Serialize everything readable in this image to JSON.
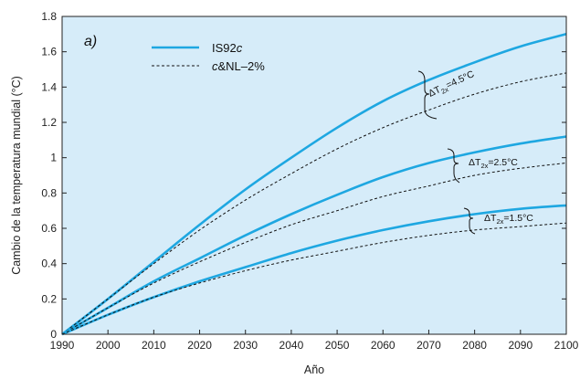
{
  "chart_data": {
    "type": "line",
    "panel_label": "a)",
    "xlabel": "Año",
    "ylabel": "Cambio de la temperatura mundial (°C)",
    "xlim": [
      1990,
      2100
    ],
    "ylim": [
      0,
      1.8
    ],
    "x_ticks": [
      "1990",
      "2000",
      "2010",
      "2020",
      "2030",
      "2040",
      "2050",
      "2060",
      "2070",
      "2080",
      "2090",
      "2100"
    ],
    "y_ticks": [
      "0",
      "0.2",
      "0.4",
      "0.6",
      "0.8",
      "1",
      "1.2",
      "1.4",
      "1.6",
      "1.8"
    ],
    "legend": [
      {
        "label_main": "IS92",
        "label_italic": "c",
        "style": "solid"
      },
      {
        "label_italic": "c",
        "label_main": "&NL–2%",
        "style": "dashed"
      }
    ],
    "annotations": [
      {
        "prefix": "ΔT",
        "sub": "2x",
        "value": "=4.5°C"
      },
      {
        "prefix": "ΔT",
        "sub": "2x",
        "value": "=2.5°C"
      },
      {
        "prefix": "ΔT",
        "sub": "2x",
        "value": "=1.5°C"
      }
    ],
    "series": [
      {
        "group": "4.5",
        "style": "solid",
        "x": [
          1990,
          2000,
          2010,
          2020,
          2030,
          2040,
          2050,
          2060,
          2070,
          2080,
          2090,
          2100
        ],
        "values": [
          0,
          0.2,
          0.41,
          0.62,
          0.82,
          1.0,
          1.17,
          1.32,
          1.44,
          1.54,
          1.63,
          1.7
        ]
      },
      {
        "group": "4.5",
        "style": "dashed",
        "x": [
          1990,
          2000,
          2010,
          2020,
          2030,
          2040,
          2050,
          2060,
          2070,
          2080,
          2090,
          2100
        ],
        "values": [
          0,
          0.2,
          0.4,
          0.59,
          0.76,
          0.91,
          1.05,
          1.17,
          1.27,
          1.36,
          1.43,
          1.48
        ]
      },
      {
        "group": "2.5",
        "style": "solid",
        "x": [
          1990,
          2000,
          2010,
          2020,
          2030,
          2040,
          2050,
          2060,
          2070,
          2080,
          2090,
          2100
        ],
        "values": [
          0,
          0.15,
          0.3,
          0.43,
          0.56,
          0.68,
          0.79,
          0.89,
          0.97,
          1.03,
          1.08,
          1.12
        ]
      },
      {
        "group": "2.5",
        "style": "dashed",
        "x": [
          1990,
          2000,
          2010,
          2020,
          2030,
          2040,
          2050,
          2060,
          2070,
          2080,
          2090,
          2100
        ],
        "values": [
          0,
          0.15,
          0.29,
          0.41,
          0.52,
          0.62,
          0.7,
          0.78,
          0.84,
          0.9,
          0.94,
          0.97
        ]
      },
      {
        "group": "1.5",
        "style": "solid",
        "x": [
          1990,
          2000,
          2010,
          2020,
          2030,
          2040,
          2050,
          2060,
          2070,
          2080,
          2090,
          2100
        ],
        "values": [
          0,
          0.11,
          0.21,
          0.3,
          0.38,
          0.46,
          0.53,
          0.59,
          0.64,
          0.68,
          0.71,
          0.73
        ]
      },
      {
        "group": "1.5",
        "style": "dashed",
        "x": [
          1990,
          2000,
          2010,
          2020,
          2030,
          2040,
          2050,
          2060,
          2070,
          2080,
          2090,
          2100
        ],
        "values": [
          0,
          0.11,
          0.21,
          0.29,
          0.36,
          0.42,
          0.47,
          0.52,
          0.56,
          0.59,
          0.61,
          0.63
        ]
      }
    ],
    "colors": {
      "background": "#d6ecf9",
      "solid": "#1ea7e1",
      "dashed": "#111111",
      "axis": "#222222"
    },
    "grid": false
  }
}
